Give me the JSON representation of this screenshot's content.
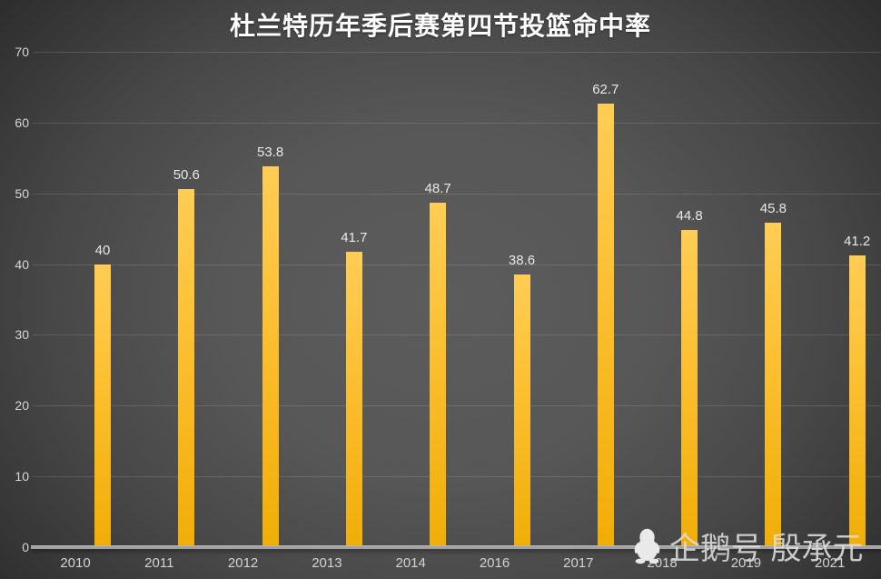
{
  "title": "杜兰特历年季后赛第四节投篮命中率",
  "chart_data": {
    "type": "bar",
    "title": "杜兰特历年季后赛第四节投篮命中率",
    "categories": [
      "2010",
      "2011",
      "2012",
      "2013",
      "2014",
      "2016",
      "2017",
      "2018",
      "2019",
      "2021"
    ],
    "values": [
      40,
      50.6,
      53.8,
      41.7,
      48.7,
      38.6,
      62.7,
      44.8,
      45.8,
      41.2
    ],
    "data_labels": [
      "40",
      "50.6",
      "53.8",
      "41.7",
      "48.7",
      "38.6",
      "62.7",
      "44.8",
      "45.8",
      "41.2"
    ],
    "xlabel": "",
    "ylabel": "",
    "ylim": [
      0,
      70
    ],
    "yticks": [
      0,
      10,
      20,
      30,
      40,
      50,
      60,
      70
    ],
    "grid": true,
    "legend": false,
    "bar_color_top": "#ffcd55",
    "bar_color_bottom": "#f0ae06"
  },
  "watermark": {
    "icon": "penguin-icon",
    "text": "企鹅号 殷承元"
  },
  "colors": {
    "background_center": "#5c5c5c",
    "background_edge": "#242424",
    "axis_line": "#a2a2a2",
    "gridline_alpha_white": "0.13",
    "title_text": "#ffffff",
    "data_label_text": "#e8e8e8",
    "tick_text": "#d6d6d6"
  }
}
